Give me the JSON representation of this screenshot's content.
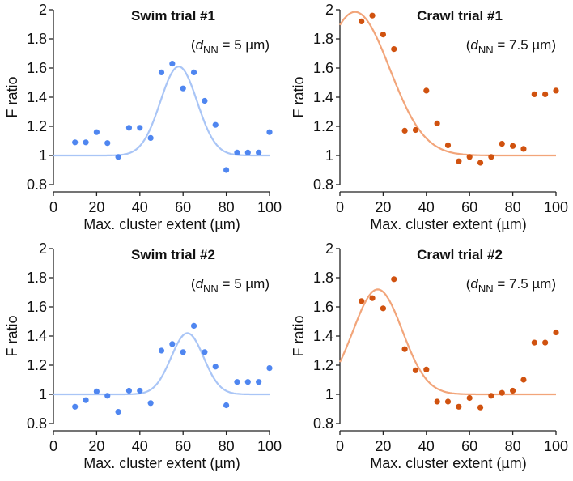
{
  "chart_data": [
    {
      "type": "scatter",
      "title": "Swim trial #1",
      "annotation": {
        "prefix": "(",
        "var": "d",
        "sub": "NN",
        "suffix": " = 5 µm)"
      },
      "xlabel": "Max. cluster extent (µm)",
      "ylabel": "F ratio",
      "xlim": [
        0,
        100
      ],
      "ylim": [
        0.8,
        2
      ],
      "xticks": [
        "0",
        "20",
        "40",
        "60",
        "80",
        "100"
      ],
      "yticks": [
        "0.8",
        "1",
        "1.2",
        "1.4",
        "1.6",
        "1.8",
        "2"
      ],
      "x": [
        10,
        15,
        20,
        25,
        30,
        35,
        40,
        45,
        50,
        55,
        60,
        65,
        70,
        75,
        80,
        85,
        90,
        95,
        100
      ],
      "y": [
        1.09,
        1.09,
        1.16,
        1.085,
        0.99,
        1.19,
        1.19,
        1.12,
        1.57,
        1.63,
        1.46,
        1.57,
        1.375,
        1.21,
        0.9,
        1.02,
        1.02,
        1.02,
        1.16
      ],
      "fit": {
        "type": "gaussian",
        "baseline": 1,
        "amplitude": 0.61,
        "center": 58,
        "sigma": 8.5
      },
      "point_color": "#4f86f0",
      "fit_color": "#a9c5f6"
    },
    {
      "type": "scatter",
      "title": "Crawl trial #1",
      "annotation": {
        "prefix": "(",
        "var": "d",
        "sub": "NN",
        "suffix": " = 7.5 µm)"
      },
      "xlabel": "Max. cluster extent (µm)",
      "ylabel": "F ratio",
      "xlim": [
        0,
        100
      ],
      "ylim": [
        0.8,
        2
      ],
      "xticks": [
        "0",
        "20",
        "40",
        "60",
        "80",
        "100"
      ],
      "yticks": [
        "0.8",
        "1",
        "1.2",
        "1.4",
        "1.6",
        "1.8",
        "2"
      ],
      "x": [
        10,
        15,
        20,
        25,
        30,
        35,
        40,
        45,
        50,
        55,
        60,
        65,
        70,
        75,
        80,
        85,
        90,
        95,
        100
      ],
      "y": [
        1.92,
        1.96,
        1.83,
        1.73,
        1.17,
        1.175,
        1.445,
        1.22,
        1.07,
        0.96,
        0.99,
        0.95,
        0.99,
        1.08,
        1.065,
        1.045,
        1.42,
        1.42,
        1.445
      ],
      "fit": {
        "type": "gaussian",
        "baseline": 1,
        "amplitude": 0.985,
        "center": 7,
        "sigma": 16
      },
      "point_color": "#d0520f",
      "fit_color": "#f2a57a"
    },
    {
      "type": "scatter",
      "title": "Swim trial #2",
      "annotation": {
        "prefix": "(",
        "var": "d",
        "sub": "NN",
        "suffix": " = 5 µm)"
      },
      "xlabel": "Max. cluster extent (µm)",
      "ylabel": "F ratio",
      "xlim": [
        0,
        100
      ],
      "ylim": [
        0.8,
        2
      ],
      "xticks": [
        "0",
        "20",
        "40",
        "60",
        "80",
        "100"
      ],
      "yticks": [
        "0.8",
        "1",
        "1.2",
        "1.4",
        "1.6",
        "1.8",
        "2"
      ],
      "x": [
        10,
        15,
        20,
        25,
        30,
        35,
        40,
        45,
        50,
        55,
        60,
        65,
        70,
        75,
        80,
        85,
        90,
        95,
        100
      ],
      "y": [
        0.915,
        0.96,
        1.02,
        0.99,
        0.88,
        1.025,
        1.025,
        0.94,
        1.3,
        1.345,
        1.29,
        1.47,
        1.29,
        1.19,
        0.925,
        1.085,
        1.085,
        1.085,
        1.18
      ],
      "fit": {
        "type": "gaussian",
        "baseline": 1,
        "amplitude": 0.42,
        "center": 62,
        "sigma": 7.5
      },
      "point_color": "#4f86f0",
      "fit_color": "#a9c5f6"
    },
    {
      "type": "scatter",
      "title": "Crawl trial #2",
      "annotation": {
        "prefix": "(",
        "var": "d",
        "sub": "NN",
        "suffix": " = 7.5 µm)"
      },
      "xlabel": "Max. cluster extent (µm)",
      "ylabel": "F ratio",
      "xlim": [
        0,
        100
      ],
      "ylim": [
        0.8,
        2
      ],
      "xticks": [
        "0",
        "20",
        "40",
        "60",
        "80",
        "100"
      ],
      "yticks": [
        "0.8",
        "1",
        "1.2",
        "1.4",
        "1.6",
        "1.8",
        "2"
      ],
      "x": [
        10,
        15,
        20,
        25,
        30,
        35,
        40,
        45,
        50,
        55,
        60,
        65,
        70,
        75,
        80,
        85,
        90,
        95,
        100
      ],
      "y": [
        1.64,
        1.66,
        1.59,
        1.79,
        1.31,
        1.165,
        1.17,
        0.95,
        0.95,
        0.915,
        0.975,
        0.91,
        0.99,
        1.01,
        1.025,
        1.1,
        1.355,
        1.355,
        1.425
      ],
      "fit": {
        "type": "gaussian",
        "baseline": 1,
        "amplitude": 0.72,
        "center": 17.5,
        "sigma": 11.4
      },
      "point_color": "#d0520f",
      "fit_color": "#f2a57a"
    }
  ]
}
